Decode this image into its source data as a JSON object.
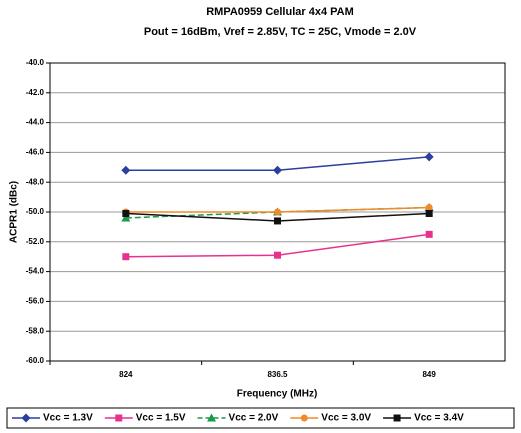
{
  "chart_data": {
    "type": "line",
    "title": "RMPA0959 Cellular 4x4 PAM",
    "subtitle": "Pout = 16dBm, Vref = 2.85V,  TC = 25C, Vmode = 2.0V",
    "x_label": "Frequency (MHz)",
    "y_label": "ACPR1 (dBc)",
    "categories": [
      "824",
      "836.5",
      "849"
    ],
    "series": [
      {
        "name": "Vcc = 1.3V",
        "color": "#2b3fa0",
        "marker": "diamond",
        "dash": false,
        "values": [
          -47.2,
          -47.2,
          -46.3
        ]
      },
      {
        "name": "Vcc = 1.5V",
        "color": "#e8318f",
        "marker": "square",
        "dash": false,
        "values": [
          -53.0,
          -52.9,
          -51.5
        ]
      },
      {
        "name": "Vcc = 2.0V",
        "color": "#1a9a4a",
        "marker": "triangle",
        "dash": true,
        "values": [
          -50.4,
          -50.0,
          -49.7
        ]
      },
      {
        "name": "Vcc = 3.0V",
        "color": "#f08a2a",
        "marker": "circle",
        "dash": false,
        "values": [
          -50.0,
          -50.0,
          -49.7
        ]
      },
      {
        "name": "Vcc = 3.4V",
        "color": "#111111",
        "marker": "square",
        "dash": false,
        "values": [
          -50.1,
          -50.6,
          -50.1
        ]
      }
    ],
    "ylim": [
      -60,
      -40
    ],
    "yticks": [
      {
        "value": -60,
        "label": "-60.0"
      },
      {
        "value": -58,
        "label": "-58.0"
      },
      {
        "value": -56,
        "label": "-56.0"
      },
      {
        "value": -54,
        "label": "-54.0"
      },
      {
        "value": -52,
        "label": "-52.0"
      },
      {
        "value": -50,
        "label": "-50.0"
      },
      {
        "value": -48,
        "label": "-48.0"
      },
      {
        "value": -46,
        "label": "-46.0"
      },
      {
        "value": -44,
        "label": "-44.0"
      },
      {
        "value": -42,
        "label": "-42.0"
      },
      {
        "value": -40,
        "label": "-40.0"
      }
    ],
    "grid": true,
    "legend": "bottom"
  }
}
